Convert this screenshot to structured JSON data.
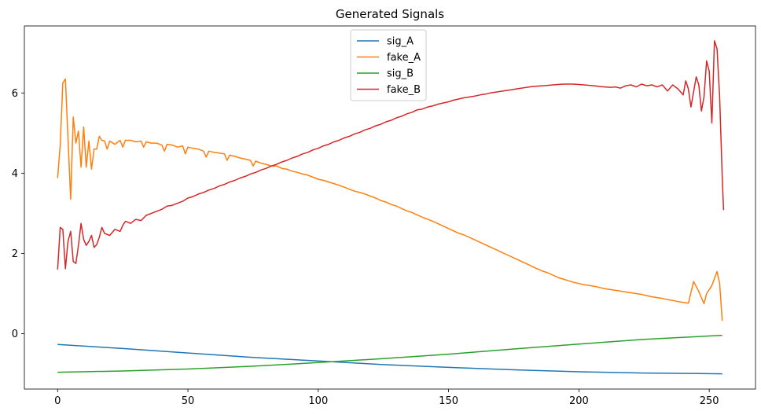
{
  "chart_data": {
    "type": "line",
    "title": "Generated Signals",
    "xlabel": "",
    "ylabel": "",
    "xlim": [
      -12.75,
      267.75
    ],
    "ylim": [
      -1.38,
      7.67
    ],
    "xticks": [
      0,
      50,
      100,
      150,
      200,
      250
    ],
    "yticks": [
      0,
      2,
      4,
      6
    ],
    "grid": false,
    "legend_position": "top-center",
    "series": [
      {
        "name": "sig_A",
        "color": "#1f77b4",
        "points": [
          [
            0,
            -0.27
          ],
          [
            25,
            -0.37
          ],
          [
            50,
            -0.48
          ],
          [
            75,
            -0.59
          ],
          [
            100,
            -0.68
          ],
          [
            125,
            -0.77
          ],
          [
            150,
            -0.84
          ],
          [
            175,
            -0.9
          ],
          [
            200,
            -0.95
          ],
          [
            225,
            -0.98
          ],
          [
            255,
            -1.0
          ]
        ]
      },
      {
        "name": "fake_A",
        "color": "#ff7f0e",
        "points": [
          [
            0,
            3.88
          ],
          [
            1,
            4.7
          ],
          [
            2,
            6.25
          ],
          [
            3,
            6.35
          ],
          [
            5,
            3.35
          ],
          [
            6,
            5.4
          ],
          [
            7,
            4.75
          ],
          [
            8,
            5.05
          ],
          [
            9,
            4.15
          ],
          [
            10,
            5.15
          ],
          [
            11,
            4.15
          ],
          [
            12,
            4.8
          ],
          [
            13,
            4.1
          ],
          [
            14,
            4.6
          ],
          [
            15,
            4.6
          ],
          [
            16,
            4.92
          ],
          [
            17,
            4.82
          ],
          [
            18,
            4.8
          ],
          [
            19,
            4.6
          ],
          [
            20,
            4.8
          ],
          [
            22,
            4.72
          ],
          [
            24,
            4.82
          ],
          [
            25,
            4.65
          ],
          [
            26,
            4.82
          ],
          [
            28,
            4.82
          ],
          [
            30,
            4.78
          ],
          [
            32,
            4.8
          ],
          [
            33,
            4.65
          ],
          [
            34,
            4.78
          ],
          [
            36,
            4.75
          ],
          [
            38,
            4.75
          ],
          [
            40,
            4.7
          ],
          [
            41,
            4.55
          ],
          [
            42,
            4.72
          ],
          [
            44,
            4.7
          ],
          [
            46,
            4.65
          ],
          [
            48,
            4.68
          ],
          [
            49,
            4.48
          ],
          [
            50,
            4.65
          ],
          [
            52,
            4.62
          ],
          [
            54,
            4.6
          ],
          [
            56,
            4.55
          ],
          [
            57,
            4.4
          ],
          [
            58,
            4.55
          ],
          [
            60,
            4.52
          ],
          [
            62,
            4.5
          ],
          [
            64,
            4.48
          ],
          [
            65,
            4.32
          ],
          [
            66,
            4.45
          ],
          [
            68,
            4.42
          ],
          [
            70,
            4.38
          ],
          [
            72,
            4.35
          ],
          [
            74,
            4.32
          ],
          [
            75,
            4.18
          ],
          [
            76,
            4.3
          ],
          [
            78,
            4.25
          ],
          [
            80,
            4.22
          ],
          [
            82,
            4.18
          ],
          [
            84,
            4.18
          ],
          [
            86,
            4.12
          ],
          [
            88,
            4.1
          ],
          [
            90,
            4.05
          ],
          [
            92,
            4.02
          ],
          [
            94,
            3.98
          ],
          [
            96,
            3.95
          ],
          [
            98,
            3.9
          ],
          [
            100,
            3.85
          ],
          [
            102,
            3.82
          ],
          [
            104,
            3.78
          ],
          [
            106,
            3.74
          ],
          [
            108,
            3.7
          ],
          [
            110,
            3.65
          ],
          [
            112,
            3.6
          ],
          [
            114,
            3.55
          ],
          [
            116,
            3.52
          ],
          [
            118,
            3.48
          ],
          [
            120,
            3.43
          ],
          [
            122,
            3.38
          ],
          [
            124,
            3.32
          ],
          [
            126,
            3.28
          ],
          [
            128,
            3.22
          ],
          [
            130,
            3.18
          ],
          [
            132,
            3.12
          ],
          [
            134,
            3.06
          ],
          [
            136,
            3.02
          ],
          [
            138,
            2.96
          ],
          [
            140,
            2.9
          ],
          [
            142,
            2.85
          ],
          [
            144,
            2.8
          ],
          [
            146,
            2.74
          ],
          [
            148,
            2.68
          ],
          [
            150,
            2.62
          ],
          [
            152,
            2.56
          ],
          [
            154,
            2.5
          ],
          [
            156,
            2.46
          ],
          [
            158,
            2.4
          ],
          [
            160,
            2.34
          ],
          [
            162,
            2.28
          ],
          [
            164,
            2.22
          ],
          [
            166,
            2.16
          ],
          [
            168,
            2.1
          ],
          [
            170,
            2.04
          ],
          [
            172,
            1.98
          ],
          [
            174,
            1.92
          ],
          [
            176,
            1.86
          ],
          [
            178,
            1.8
          ],
          [
            180,
            1.74
          ],
          [
            182,
            1.68
          ],
          [
            184,
            1.62
          ],
          [
            186,
            1.56
          ],
          [
            188,
            1.52
          ],
          [
            190,
            1.46
          ],
          [
            192,
            1.4
          ],
          [
            194,
            1.36
          ],
          [
            196,
            1.32
          ],
          [
            198,
            1.28
          ],
          [
            200,
            1.25
          ],
          [
            202,
            1.22
          ],
          [
            204,
            1.2
          ],
          [
            206,
            1.18
          ],
          [
            208,
            1.15
          ],
          [
            210,
            1.12
          ],
          [
            212,
            1.1
          ],
          [
            214,
            1.08
          ],
          [
            216,
            1.06
          ],
          [
            218,
            1.04
          ],
          [
            220,
            1.02
          ],
          [
            222,
            1.0
          ],
          [
            224,
            0.98
          ],
          [
            226,
            0.95
          ],
          [
            228,
            0.92
          ],
          [
            230,
            0.9
          ],
          [
            232,
            0.88
          ],
          [
            234,
            0.85
          ],
          [
            236,
            0.83
          ],
          [
            238,
            0.8
          ],
          [
            240,
            0.78
          ],
          [
            242,
            0.76
          ],
          [
            244,
            1.3
          ],
          [
            246,
            1.05
          ],
          [
            248,
            0.75
          ],
          [
            249,
            1.0
          ],
          [
            251,
            1.2
          ],
          [
            253,
            1.55
          ],
          [
            254,
            1.25
          ],
          [
            255,
            0.32
          ]
        ]
      },
      {
        "name": "sig_B",
        "color": "#2ca02c",
        "points": [
          [
            0,
            -0.96
          ],
          [
            25,
            -0.93
          ],
          [
            50,
            -0.88
          ],
          [
            75,
            -0.81
          ],
          [
            100,
            -0.72
          ],
          [
            125,
            -0.62
          ],
          [
            150,
            -0.51
          ],
          [
            175,
            -0.38
          ],
          [
            200,
            -0.26
          ],
          [
            225,
            -0.14
          ],
          [
            255,
            -0.04
          ]
        ]
      },
      {
        "name": "fake_B",
        "color": "#d62728",
        "points": [
          [
            0,
            1.6
          ],
          [
            1,
            2.65
          ],
          [
            2,
            2.6
          ],
          [
            3,
            1.62
          ],
          [
            4,
            2.3
          ],
          [
            5,
            2.55
          ],
          [
            6,
            1.8
          ],
          [
            7,
            1.75
          ],
          [
            8,
            2.2
          ],
          [
            9,
            2.75
          ],
          [
            10,
            2.35
          ],
          [
            11,
            2.2
          ],
          [
            12,
            2.3
          ],
          [
            13,
            2.45
          ],
          [
            14,
            2.15
          ],
          [
            15,
            2.22
          ],
          [
            16,
            2.4
          ],
          [
            17,
            2.65
          ],
          [
            18,
            2.5
          ],
          [
            20,
            2.45
          ],
          [
            22,
            2.6
          ],
          [
            24,
            2.55
          ],
          [
            25,
            2.7
          ],
          [
            26,
            2.8
          ],
          [
            28,
            2.75
          ],
          [
            30,
            2.85
          ],
          [
            32,
            2.82
          ],
          [
            34,
            2.95
          ],
          [
            36,
            3.0
          ],
          [
            38,
            3.05
          ],
          [
            40,
            3.1
          ],
          [
            42,
            3.18
          ],
          [
            44,
            3.2
          ],
          [
            46,
            3.25
          ],
          [
            48,
            3.3
          ],
          [
            50,
            3.38
          ],
          [
            52,
            3.42
          ],
          [
            54,
            3.48
          ],
          [
            56,
            3.52
          ],
          [
            58,
            3.58
          ],
          [
            60,
            3.62
          ],
          [
            62,
            3.68
          ],
          [
            64,
            3.72
          ],
          [
            66,
            3.78
          ],
          [
            68,
            3.82
          ],
          [
            70,
            3.88
          ],
          [
            72,
            3.92
          ],
          [
            74,
            3.98
          ],
          [
            76,
            4.02
          ],
          [
            78,
            4.08
          ],
          [
            80,
            4.12
          ],
          [
            82,
            4.18
          ],
          [
            84,
            4.22
          ],
          [
            86,
            4.28
          ],
          [
            88,
            4.32
          ],
          [
            90,
            4.38
          ],
          [
            92,
            4.42
          ],
          [
            94,
            4.48
          ],
          [
            96,
            4.52
          ],
          [
            98,
            4.58
          ],
          [
            100,
            4.62
          ],
          [
            102,
            4.68
          ],
          [
            104,
            4.72
          ],
          [
            106,
            4.78
          ],
          [
            108,
            4.82
          ],
          [
            110,
            4.88
          ],
          [
            112,
            4.92
          ],
          [
            114,
            4.98
          ],
          [
            116,
            5.02
          ],
          [
            118,
            5.08
          ],
          [
            120,
            5.12
          ],
          [
            122,
            5.18
          ],
          [
            124,
            5.22
          ],
          [
            126,
            5.28
          ],
          [
            128,
            5.32
          ],
          [
            130,
            5.38
          ],
          [
            132,
            5.42
          ],
          [
            134,
            5.48
          ],
          [
            136,
            5.52
          ],
          [
            138,
            5.58
          ],
          [
            140,
            5.6
          ],
          [
            142,
            5.65
          ],
          [
            144,
            5.68
          ],
          [
            146,
            5.72
          ],
          [
            148,
            5.75
          ],
          [
            150,
            5.78
          ],
          [
            152,
            5.82
          ],
          [
            154,
            5.85
          ],
          [
            156,
            5.88
          ],
          [
            158,
            5.9
          ],
          [
            160,
            5.92
          ],
          [
            162,
            5.95
          ],
          [
            164,
            5.97
          ],
          [
            166,
            6.0
          ],
          [
            168,
            6.02
          ],
          [
            170,
            6.04
          ],
          [
            172,
            6.06
          ],
          [
            174,
            6.08
          ],
          [
            176,
            6.1
          ],
          [
            178,
            6.12
          ],
          [
            180,
            6.14
          ],
          [
            182,
            6.16
          ],
          [
            184,
            6.17
          ],
          [
            186,
            6.18
          ],
          [
            188,
            6.19
          ],
          [
            190,
            6.2
          ],
          [
            192,
            6.21
          ],
          [
            194,
            6.22
          ],
          [
            196,
            6.22
          ],
          [
            198,
            6.22
          ],
          [
            200,
            6.21
          ],
          [
            202,
            6.2
          ],
          [
            204,
            6.19
          ],
          [
            206,
            6.18
          ],
          [
            208,
            6.16
          ],
          [
            210,
            6.15
          ],
          [
            212,
            6.14
          ],
          [
            214,
            6.15
          ],
          [
            216,
            6.12
          ],
          [
            218,
            6.18
          ],
          [
            220,
            6.2
          ],
          [
            222,
            6.15
          ],
          [
            224,
            6.22
          ],
          [
            226,
            6.18
          ],
          [
            228,
            6.2
          ],
          [
            230,
            6.15
          ],
          [
            232,
            6.2
          ],
          [
            234,
            6.05
          ],
          [
            236,
            6.2
          ],
          [
            238,
            6.1
          ],
          [
            240,
            5.95
          ],
          [
            241,
            6.3
          ],
          [
            242,
            6.1
          ],
          [
            243,
            5.65
          ],
          [
            245,
            6.4
          ],
          [
            246,
            6.2
          ],
          [
            247,
            5.55
          ],
          [
            248,
            5.9
          ],
          [
            249,
            6.8
          ],
          [
            250,
            6.55
          ],
          [
            251,
            5.25
          ],
          [
            252,
            7.3
          ],
          [
            253,
            7.1
          ],
          [
            254,
            5.9
          ],
          [
            255,
            3.9
          ],
          [
            255.5,
            3.08
          ]
        ]
      }
    ]
  }
}
